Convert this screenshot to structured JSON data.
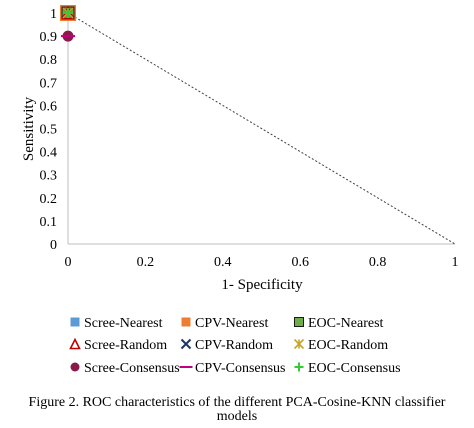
{
  "chart_data": {
    "type": "scatter",
    "title": "",
    "xlabel": "1- Specificity",
    "ylabel": "Sensitivity",
    "xlim": [
      0,
      1
    ],
    "ylim": [
      0,
      1
    ],
    "x_ticks": [
      "0",
      "0.2",
      "0.4",
      "0.6",
      "0.8",
      "1"
    ],
    "y_ticks": [
      "0",
      "0.1",
      "0.2",
      "0.3",
      "0.4",
      "0.5",
      "0.6",
      "0.7",
      "0.8",
      "0.9",
      "1"
    ],
    "grid": false,
    "legend_position": "bottom",
    "reference_line": {
      "x": [
        0,
        1
      ],
      "y": [
        1,
        0
      ],
      "style": "dotted"
    },
    "series": [
      {
        "name": "Scree-Nearest",
        "marker": "square",
        "color": "#5b9bd5",
        "x": [
          0.0
        ],
        "y": [
          1.0
        ]
      },
      {
        "name": "CPV-Nearest",
        "marker": "square",
        "color": "#ed7d31",
        "x": [
          0.0
        ],
        "y": [
          1.0
        ]
      },
      {
        "name": "EOC-Nearest",
        "marker": "square-outline",
        "color": "#70ad47",
        "x": [
          0.0
        ],
        "y": [
          1.0
        ]
      },
      {
        "name": "Scree-Random",
        "marker": "triangle",
        "color": "#c00000",
        "x": [
          0.0
        ],
        "y": [
          1.0
        ]
      },
      {
        "name": "CPV-Random",
        "marker": "x",
        "color": "#1f3864",
        "x": [
          0.0
        ],
        "y": [
          1.0
        ]
      },
      {
        "name": "EOC-Random",
        "marker": "star",
        "color": "#c9a227",
        "x": [
          0.0
        ],
        "y": [
          1.0
        ]
      },
      {
        "name": "Scree-Consensus",
        "marker": "circle",
        "color": "#8b1a4a",
        "x": [
          0.0
        ],
        "y": [
          0.9
        ]
      },
      {
        "name": "CPV-Consensus",
        "marker": "dash",
        "color": "#c00080",
        "x": [
          0.0
        ],
        "y": [
          0.9
        ]
      },
      {
        "name": "EOC-Consensus",
        "marker": "plus",
        "color": "#33cc33",
        "x": [
          0.0
        ],
        "y": [
          1.0
        ]
      }
    ]
  },
  "caption": {
    "line1": "Figure 2. ROC characteristics of the different PCA-Cosine-KNN classifier",
    "line2": "models"
  }
}
